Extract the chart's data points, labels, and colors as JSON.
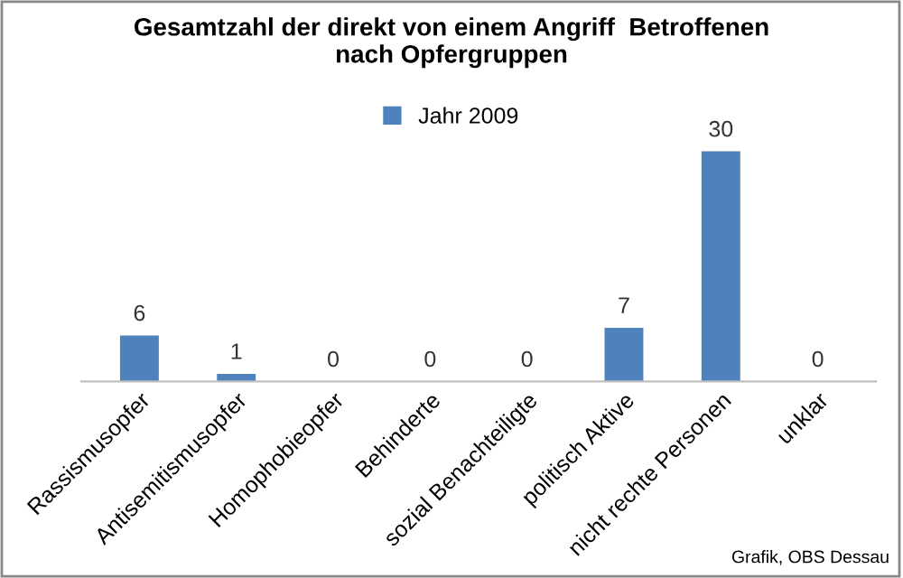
{
  "chart_data": {
    "type": "bar",
    "title": "Gesamtzahl der direkt von einem Angriff  Betroffenen\nnach Opfergruppen",
    "categories": [
      "Rassismusopfer",
      "Antisemitismusopfer",
      "Homophobieopfer",
      "Behinderte",
      "sozial Benachteiligte",
      "politisch Aktive",
      "nicht rechte Personen",
      "unklar"
    ],
    "series": [
      {
        "name": "Jahr 2009",
        "color": "#4f81bd",
        "values": [
          6,
          1,
          0,
          0,
          0,
          7,
          30,
          0
        ]
      }
    ],
    "data_labels": true,
    "legend": "top",
    "grid": false,
    "annotations": [
      "Grafik, OBS Dessau"
    ]
  }
}
